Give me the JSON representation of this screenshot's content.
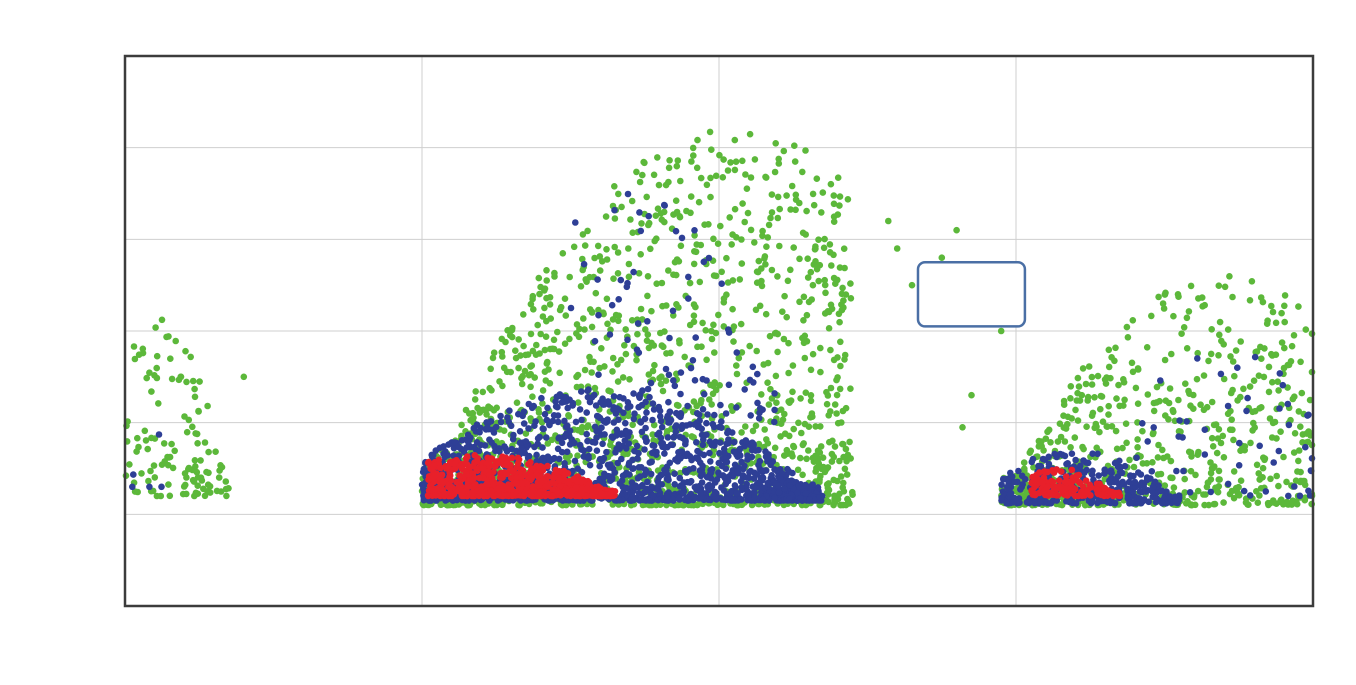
{
  "chart_data": {
    "type": "scatter",
    "title": "",
    "xlabel": "",
    "ylabel": "",
    "xlim": [
      0,
      4
    ],
    "ylim": [
      0,
      6
    ],
    "grid": true,
    "legend": "none",
    "colors": {
      "green": "#5cb83a",
      "blue": "#2e3f96",
      "red": "#e8202a",
      "axes": "#3c3c3c",
      "grid": "#cfcfcf",
      "annotation_box": "#4a6fa5"
    },
    "series": [
      {
        "color": "green",
        "clusters": [
          {
            "x_min": 0.0,
            "x_max": 0.35,
            "y_floor": 1.2,
            "y_peak": 3.2,
            "peak_x": 0.1,
            "count": 120
          },
          {
            "x_min": 1.0,
            "x_max": 2.45,
            "y_floor": 1.1,
            "y_peak": 5.2,
            "peak_x": 2.05,
            "count": 1500
          },
          {
            "x_min": 2.95,
            "x_max": 4.0,
            "y_floor": 1.1,
            "y_peak": 3.6,
            "peak_x": 3.7,
            "count": 650
          }
        ],
        "outliers": [
          [
            0.4,
            2.5
          ],
          [
            2.6,
            3.9
          ],
          [
            2.65,
            3.5
          ],
          [
            2.75,
            3.8
          ],
          [
            2.8,
            4.1
          ],
          [
            2.95,
            3.0
          ],
          [
            2.85,
            2.3
          ],
          [
            2.82,
            1.95
          ],
          [
            2.57,
            4.2
          ],
          [
            3.0,
            3.7
          ]
        ]
      },
      {
        "color": "blue",
        "clusters": [
          {
            "x_min": 1.0,
            "x_max": 2.35,
            "y_floor": 1.15,
            "y_peak": 2.35,
            "peak_x": 1.6,
            "count": 1400
          },
          {
            "x_min": 2.95,
            "x_max": 3.55,
            "y_floor": 1.12,
            "y_peak": 1.7,
            "peak_x": 3.2,
            "count": 320
          },
          {
            "x_min": 1.5,
            "x_max": 2.2,
            "y_floor": 2.0,
            "y_peak": 4.6,
            "peak_x": 1.7,
            "count": 90
          },
          {
            "x_min": 3.3,
            "x_max": 4.0,
            "y_floor": 1.2,
            "y_peak": 3.0,
            "peak_x": 3.7,
            "count": 60
          },
          {
            "x_min": 0.0,
            "x_max": 0.2,
            "y_floor": 1.3,
            "y_peak": 2.0,
            "peak_x": 0.1,
            "count": 5
          }
        ]
      },
      {
        "color": "red",
        "clusters": [
          {
            "x_min": 1.02,
            "x_max": 1.65,
            "y_floor": 1.2,
            "y_peak": 1.65,
            "peak_x": 1.2,
            "count": 700
          },
          {
            "x_min": 3.05,
            "x_max": 3.35,
            "y_floor": 1.2,
            "y_peak": 1.5,
            "peak_x": 3.15,
            "count": 150
          }
        ]
      }
    ],
    "annotation": {
      "x0": 2.67,
      "x1": 3.03,
      "y0": 3.05,
      "y1": 3.75,
      "text": ""
    }
  }
}
